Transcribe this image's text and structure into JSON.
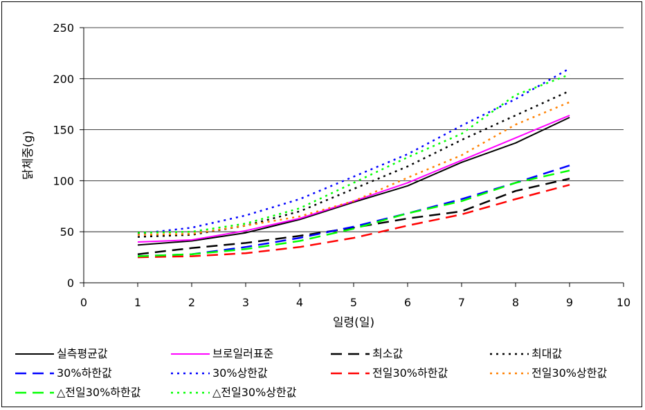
{
  "chart_data": {
    "type": "line",
    "title": "",
    "xlabel": "일령(일)",
    "ylabel": "닭체중(g)",
    "xlim": [
      0,
      10
    ],
    "ylim": [
      0,
      250
    ],
    "xticks": [
      "0",
      "1",
      "2",
      "3",
      "4",
      "5",
      "6",
      "7",
      "8",
      "9",
      "10"
    ],
    "yticks": [
      "0",
      "50",
      "100",
      "150",
      "200",
      "250"
    ],
    "grid": "horizontal",
    "legend_position": "bottom",
    "x": [
      1,
      2,
      3,
      4,
      5,
      6,
      7,
      8,
      9
    ],
    "series": [
      {
        "name": "실측평균값",
        "color": "#000000",
        "dash": "solid",
        "values": [
          37,
          41,
          49,
          62,
          79,
          95,
          118,
          137,
          162
        ]
      },
      {
        "name": "브로일러표준",
        "color": "#ff00ff",
        "dash": "solid",
        "values": [
          40,
          42,
          51,
          63,
          80,
          98,
          120,
          142,
          164
        ]
      },
      {
        "name": "최소값",
        "color": "#000000",
        "dash": "long",
        "values": [
          28,
          34,
          39,
          46,
          54,
          63,
          70,
          90,
          102
        ]
      },
      {
        "name": "최대값",
        "color": "#000000",
        "dash": "dot",
        "values": [
          45,
          47,
          56,
          70,
          92,
          114,
          140,
          164,
          188
        ]
      },
      {
        "name": "30%하한값",
        "color": "#0000ff",
        "dash": "long",
        "values": [
          26,
          28,
          35,
          44,
          55,
          68,
          82,
          98,
          115
        ]
      },
      {
        "name": "30%상한값",
        "color": "#0000ff",
        "dash": "dot",
        "values": [
          48,
          54,
          66,
          82,
          104,
          126,
          154,
          180,
          210
        ]
      },
      {
        "name": "전일30%하한값",
        "color": "#ff0000",
        "dash": "long",
        "values": [
          25,
          26,
          29,
          35,
          44,
          56,
          67,
          82,
          96
        ]
      },
      {
        "name": "전일30%상한값",
        "color": "#ff8000",
        "dash": "dot",
        "values": [
          47,
          48,
          56,
          65,
          80,
          103,
          125,
          155,
          177
        ]
      },
      {
        "name": "△전일30%하한값",
        "color": "#00ff00",
        "dash": "long",
        "values": [
          26,
          28,
          33,
          41,
          53,
          68,
          80,
          98,
          110
        ]
      },
      {
        "name": "△전일30%상한값",
        "color": "#00ff00",
        "dash": "dot",
        "values": [
          49,
          50,
          58,
          73,
          98,
          123,
          146,
          184,
          204
        ]
      }
    ]
  }
}
